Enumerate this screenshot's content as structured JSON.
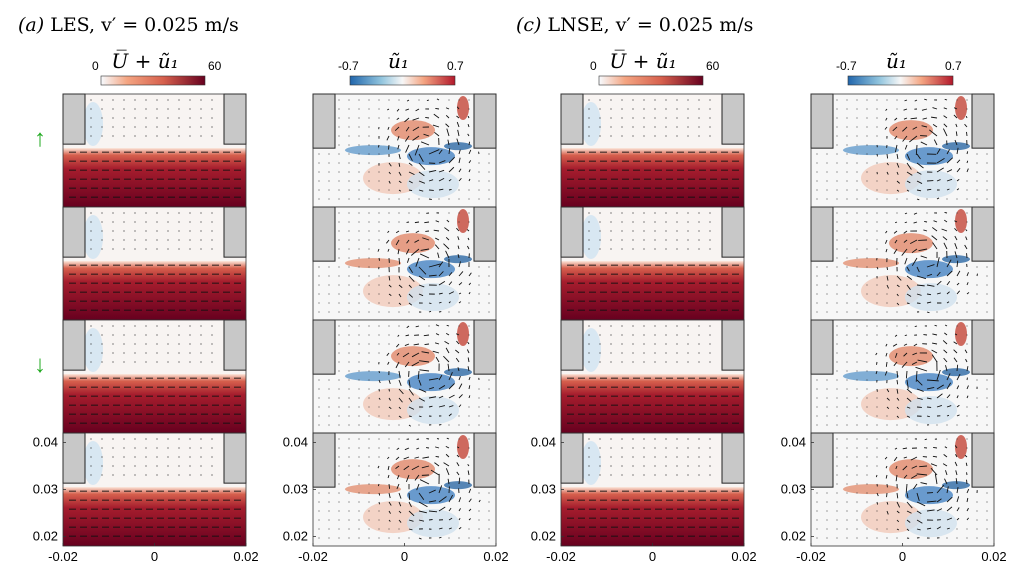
{
  "figure": {
    "groups": [
      {
        "title_label": "(a)",
        "title_method": "LES,",
        "title_rest": "v′ = 0.025 m/s",
        "mean_panel": {
          "colorbar": {
            "label": "U̅ + ũ₁",
            "min_label": "0",
            "max_label": "60"
          }
        },
        "fluct_panel": {
          "colorbar": {
            "label": "ũ₁",
            "min_label": "-0.7",
            "max_label": "0.7"
          }
        }
      },
      {
        "title_label": "(c)",
        "title_method": "LNSE,",
        "title_rest": "v′ = 0.025 m/s",
        "mean_panel": {
          "colorbar": {
            "label": "U̅ + ũ₁",
            "min_label": "0",
            "max_label": "60"
          }
        },
        "fluct_panel": {
          "colorbar": {
            "label": "ũ₁",
            "min_label": "-0.7",
            "max_label": "0.7"
          }
        }
      }
    ],
    "row_arrows": [
      {
        "row": 0,
        "symbol": "↑",
        "color": "#22aa22"
      },
      {
        "row": 2,
        "symbol": "↓",
        "color": "#22aa22"
      }
    ]
  },
  "chart_data": {
    "type": "heatmap",
    "layout": {
      "rows": 4,
      "columns": 4
    },
    "x_ticks": [
      -0.02,
      0,
      0.02
    ],
    "x_tick_labels": [
      "-0.02",
      "0",
      "0.02"
    ],
    "y_ticks": [
      0.04,
      0.03,
      0.02
    ],
    "y_tick_labels": [
      "0.04",
      "0.03",
      "0.02"
    ],
    "xlim": [
      -0.02,
      0.02
    ],
    "ylim": [
      0.018,
      0.042
    ],
    "colormap": "diverging blue-white-red",
    "colors": {
      "negative": "#2a6cb0",
      "zero": "#f7f7f7",
      "positive": "#b2182b",
      "wall": "#c8c8c8"
    }
  }
}
